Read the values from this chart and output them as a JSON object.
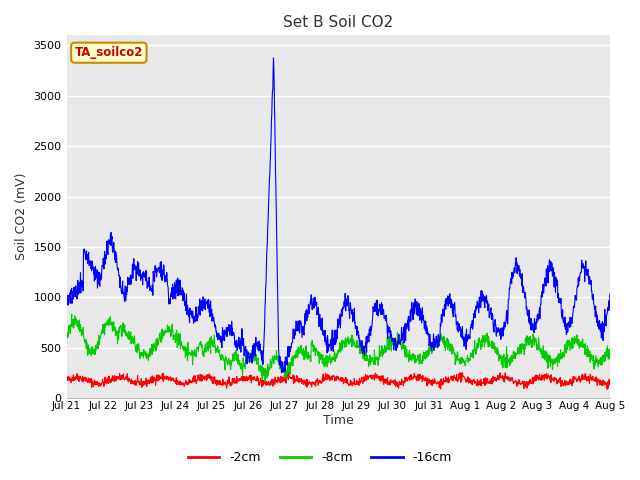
{
  "title": "Set B Soil CO2",
  "ylabel": "Soil CO2 (mV)",
  "xlabel": "Time",
  "ylim": [
    0,
    3600
  ],
  "yticks": [
    0,
    500,
    1000,
    1500,
    2000,
    2500,
    3000,
    3500
  ],
  "xtick_labels": [
    "Jul 21",
    "Jul 22",
    "Jul 23",
    "Jul 24",
    "Jul 25",
    "Jul 26",
    "Jul 27",
    "Jul 28",
    "Jul 29",
    "Jul 30",
    "Jul 31",
    "Aug 1",
    "Aug 2",
    "Aug 3",
    "Aug 4",
    "Aug 5"
  ],
  "colors": {
    "red": "#ff0000",
    "green": "#00cc00",
    "blue": "#0000ff"
  },
  "legend_labels": [
    "-2cm",
    "-8cm",
    "-16cm"
  ],
  "tag_label": "TA_soilco2",
  "tag_bg": "#ffffcc",
  "tag_border": "#cc8800",
  "tag_text_color": "#cc0000",
  "fig_bg": "#ffffff",
  "plot_bg": "#e8e8e8"
}
